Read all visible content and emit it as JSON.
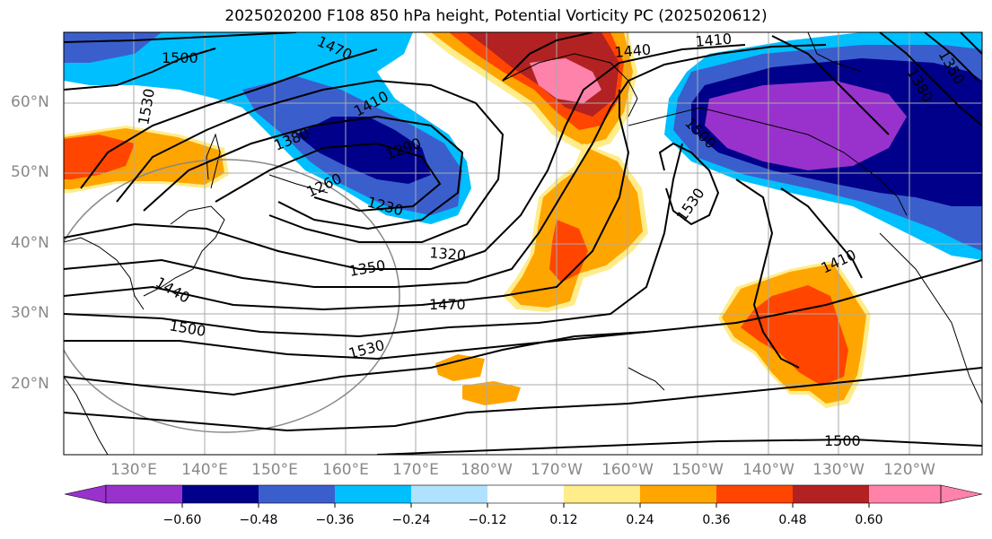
{
  "title": "2025020200 F108 850 hPa height, Potential Vorticity PC (2025020612)",
  "lat_labels": [
    "60°N",
    "50°N",
    "40°N",
    "30°N",
    "20°N"
  ],
  "lon_labels": [
    "130°E",
    "140°E",
    "150°E",
    "160°E",
    "170°E",
    "180°W",
    "170°W",
    "160°W",
    "150°W",
    "140°W",
    "130°W",
    "120°W"
  ],
  "colorbar": {
    "labels": [
      "−0.60",
      "−0.48",
      "−0.36",
      "−0.24",
      "−0.12",
      "0.12",
      "0.24",
      "0.36",
      "0.48",
      "0.60"
    ],
    "colors": [
      "#9932cc",
      "#00008b",
      "#3a5fcd",
      "#00bfff",
      "#b0e2ff",
      "#ffffff",
      "#ffec8b",
      "#ffa500",
      "#ff4500",
      "#b22222",
      "#ff82ab"
    ]
  },
  "contour_labels": [
    "1470",
    "1410",
    "1440",
    "1500",
    "1530",
    "1410",
    "1380",
    "1290",
    "1260",
    "1230",
    "1320",
    "1350",
    "1440",
    "1470",
    "1500",
    "1530",
    "1500",
    "1530",
    "1410",
    "1500",
    "1350",
    "1380"
  ],
  "colors": {
    "purple": "#9932cc",
    "navy": "#00008b",
    "royal": "#3a5fcd",
    "sky": "#00bfff",
    "lightblue": "#b0e2ff",
    "yellow": "#ffec8b",
    "orange": "#ffa500",
    "redorange": "#ff4500",
    "firebrick": "#b22222",
    "pink": "#ff82ab"
  }
}
